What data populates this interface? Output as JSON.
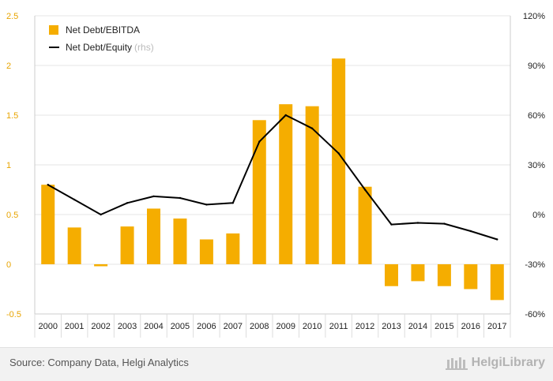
{
  "chart_data": {
    "type": "bar",
    "title": "",
    "categories": [
      "2000",
      "2001",
      "2002",
      "2003",
      "2004",
      "2005",
      "2006",
      "2007",
      "2008",
      "2009",
      "2010",
      "2011",
      "2012",
      "2013",
      "2014",
      "2015",
      "2016",
      "2017"
    ],
    "series": [
      {
        "name": "Net Debt/EBITDA",
        "type": "bar",
        "axis": "left",
        "values": [
          0.8,
          0.37,
          -0.02,
          0.38,
          0.56,
          0.46,
          0.25,
          0.31,
          1.45,
          1.61,
          1.59,
          2.07,
          0.78,
          -0.22,
          -0.17,
          -0.22,
          -0.25,
          -0.36
        ]
      },
      {
        "name": "Net Debt/Equity",
        "type": "line",
        "axis": "right",
        "unit": "%",
        "values": [
          18,
          9,
          0,
          7,
          11,
          10,
          6,
          7,
          44,
          60,
          52,
          37,
          15,
          -6,
          -5,
          -5.5,
          -10,
          -15
        ]
      }
    ],
    "left_axis": {
      "ylim": [
        -0.5,
        2.5
      ],
      "ticks": [
        "-0.5",
        "0",
        "0.5",
        "1",
        "1.5",
        "2",
        "2.5"
      ],
      "tick_values": [
        -0.5,
        0,
        0.5,
        1,
        1.5,
        2,
        2.5
      ]
    },
    "right_axis": {
      "ylim": [
        -60,
        120
      ],
      "ticks": [
        "-60%",
        "-30%",
        "0%",
        "30%",
        "60%",
        "90%",
        "120%"
      ],
      "tick_values": [
        -60,
        -30,
        0,
        30,
        60,
        90,
        120
      ]
    },
    "xlabel": "",
    "ylabel": "",
    "legend": {
      "placement": "top-left",
      "bar_label": "Net Debt/EBITDA",
      "line_label": "Net Debt/Equity",
      "line_suffix": "(rhs)"
    },
    "colors": {
      "bar": "#f5ad00",
      "line": "#000000",
      "left_tick": "#e8a400",
      "grid": "#e6e6e6"
    }
  },
  "footer": {
    "source": "Source: Company Data, Helgi Analytics",
    "logo": "HelgiLibrary"
  }
}
